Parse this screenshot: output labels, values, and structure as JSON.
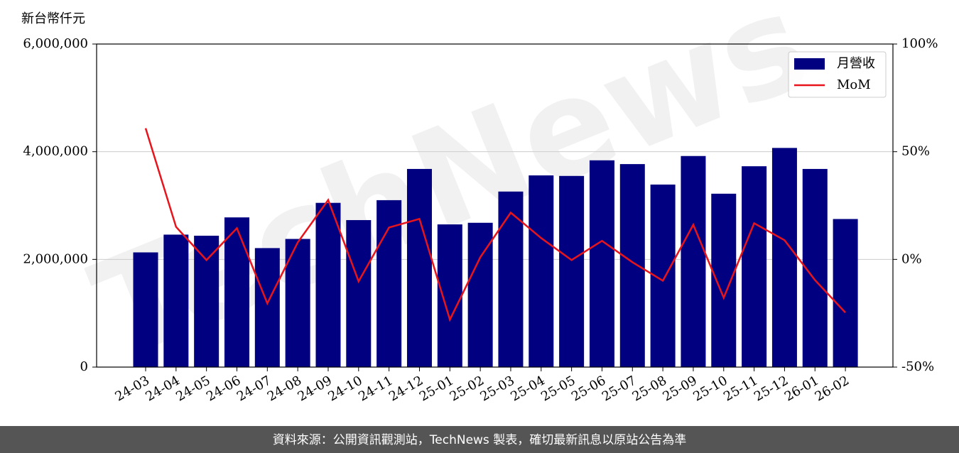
{
  "chart_data": {
    "type": "bar-line",
    "y_label": "新台幣仟元",
    "watermark": "TechNews",
    "source": "資料來源：公開資訊觀測站，TechNews 製表，確切最新訊息以原站公告為準",
    "categories": [
      "24-03",
      "24-04",
      "24-05",
      "24-06",
      "24-07",
      "24-08",
      "24-09",
      "24-10",
      "24-11",
      "24-12",
      "25-01",
      "25-02",
      "25-03",
      "25-04",
      "25-05",
      "25-06",
      "25-07",
      "25-08",
      "25-09",
      "25-10",
      "25-11",
      "25-12",
      "26-01",
      "26-02"
    ],
    "series": [
      {
        "name": "月營收",
        "type": "bar",
        "color": "#000080",
        "values": [
          2130000,
          2460000,
          2440000,
          2780000,
          2210000,
          2380000,
          3050000,
          2730000,
          3100000,
          3680000,
          2650000,
          2680000,
          3260000,
          3560000,
          3550000,
          3840000,
          3770000,
          3390000,
          3920000,
          3220000,
          3730000,
          4070000,
          3680000,
          2750000
        ]
      },
      {
        "name": "MoM",
        "type": "line",
        "axis": "y2",
        "color": "#e8141c",
        "values": [
          60.9,
          15.1,
          -0.3,
          14.5,
          -20.4,
          7.9,
          27.6,
          -10.2,
          14.8,
          18.8,
          -28.0,
          1.0,
          21.7,
          9.9,
          -0.3,
          8.6,
          -1.3,
          -9.9,
          16.1,
          -17.8,
          16.8,
          8.9,
          -9.6,
          -24.7
        ]
      }
    ],
    "ylim": [
      0,
      6000000
    ],
    "yticks": [
      0,
      {
        "value": 2000000,
        "label": "2,000,000"
      },
      {
        "value": 4000000,
        "label": "4,000,000"
      },
      {
        "value": 6000000,
        "label": "6,000,000"
      }
    ],
    "y2lim": [
      -50,
      100
    ],
    "y2ticks": [
      {
        "value": -50,
        "label": "-50%"
      },
      {
        "value": 0,
        "label": "0%"
      },
      {
        "value": 50,
        "label": "50%"
      },
      {
        "value": 100,
        "label": "100%"
      }
    ],
    "grid": true,
    "legend": "upper right"
  }
}
